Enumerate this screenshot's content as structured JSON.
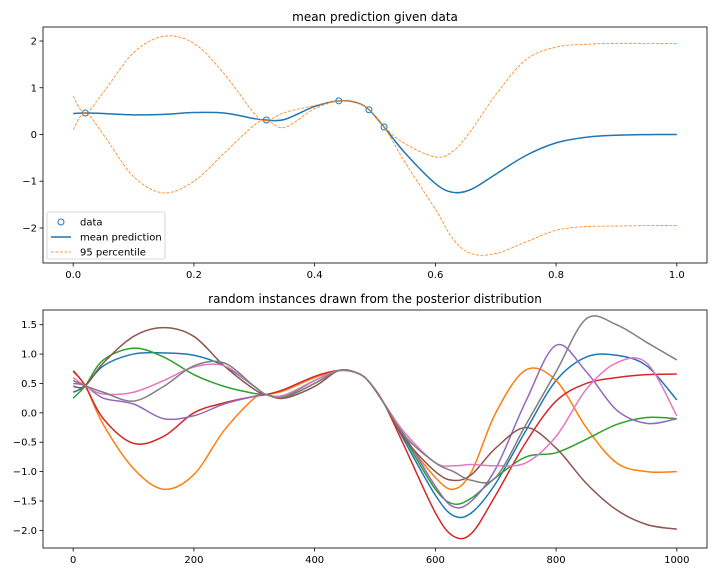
{
  "chart_data": [
    {
      "type": "line",
      "title": "mean prediction given data",
      "xlim": [
        -0.05,
        1.05
      ],
      "ylim": [
        -2.75,
        2.3
      ],
      "xticks": [
        0.0,
        0.2,
        0.4,
        0.6,
        0.8,
        1.0
      ],
      "xtick_labels": [
        "0.0",
        "0.2",
        "0.4",
        "0.6",
        "0.8",
        "1.0"
      ],
      "yticks": [
        -2,
        -1,
        0,
        1,
        2
      ],
      "ytick_labels": [
        "−2",
        "−1",
        "0",
        "1",
        "2"
      ],
      "legend_position": "lower-left",
      "series": [
        {
          "name": "data",
          "kind": "scatter",
          "color": "#1f77b4",
          "x": [
            0.02,
            0.32,
            0.44,
            0.49,
            0.515
          ],
          "y": [
            0.46,
            0.31,
            0.72,
            0.53,
            0.16
          ]
        },
        {
          "name": "mean prediction",
          "kind": "line",
          "color": "#1f77b4",
          "x": [
            0.0,
            0.02,
            0.05,
            0.1,
            0.15,
            0.2,
            0.25,
            0.3,
            0.32,
            0.35,
            0.4,
            0.44,
            0.47,
            0.49,
            0.515,
            0.55,
            0.6,
            0.63,
            0.66,
            0.7,
            0.75,
            0.8,
            0.85,
            0.9,
            0.95,
            1.0
          ],
          "y": [
            0.45,
            0.46,
            0.45,
            0.42,
            0.43,
            0.47,
            0.46,
            0.34,
            0.31,
            0.32,
            0.6,
            0.72,
            0.68,
            0.53,
            0.16,
            -0.4,
            -1.05,
            -1.24,
            -1.17,
            -0.85,
            -0.45,
            -0.18,
            -0.06,
            -0.015,
            -0.003,
            0.0
          ]
        },
        {
          "name": "95 percentile",
          "kind": "dashed",
          "color": "#ff7f0e",
          "x": [
            0.0,
            0.02,
            0.05,
            0.1,
            0.15,
            0.2,
            0.25,
            0.3,
            0.32,
            0.35,
            0.4,
            0.44,
            0.47,
            0.49,
            0.515,
            0.55,
            0.6,
            0.63,
            0.66,
            0.7,
            0.75,
            0.8,
            0.85,
            0.9,
            0.95,
            1.0
          ],
          "y": [
            0.82,
            0.46,
            0.9,
            1.75,
            2.1,
            1.95,
            1.3,
            0.45,
            0.3,
            0.47,
            0.62,
            0.72,
            0.67,
            0.53,
            0.16,
            -0.2,
            -0.48,
            -0.35,
            0.1,
            0.85,
            1.6,
            1.87,
            1.93,
            1.95,
            1.95,
            1.95
          ]
        },
        {
          "name": "",
          "kind": "dashed",
          "color": "#ff7f0e",
          "x": [
            0.0,
            0.02,
            0.05,
            0.1,
            0.15,
            0.2,
            0.25,
            0.3,
            0.32,
            0.35,
            0.4,
            0.44,
            0.47,
            0.49,
            0.515,
            0.55,
            0.6,
            0.63,
            0.66,
            0.7,
            0.75,
            0.8,
            0.85,
            0.9,
            0.95,
            1.0
          ],
          "y": [
            0.1,
            0.46,
            0.0,
            -0.9,
            -1.25,
            -1.0,
            -0.4,
            0.2,
            0.3,
            0.15,
            0.55,
            0.72,
            0.68,
            0.53,
            0.16,
            -0.6,
            -1.6,
            -2.25,
            -2.55,
            -2.55,
            -2.3,
            -2.05,
            -1.97,
            -1.96,
            -1.95,
            -1.95
          ]
        }
      ]
    },
    {
      "type": "line",
      "title": "random instances drawn from the posterior distribution",
      "xlim": [
        -50,
        1050
      ],
      "ylim": [
        -2.3,
        1.75
      ],
      "xticks": [
        0,
        200,
        400,
        600,
        800,
        1000
      ],
      "xtick_labels": [
        "0",
        "200",
        "400",
        "600",
        "800",
        "1000"
      ],
      "yticks": [
        -2.0,
        -1.5,
        -1.0,
        -0.5,
        0.0,
        0.5,
        1.0,
        1.5
      ],
      "ytick_labels": [
        "−2.0",
        "−1.5",
        "−1.0",
        "−0.5",
        "0.0",
        "0.5",
        "1.0",
        "1.5"
      ],
      "x": [
        0,
        20,
        50,
        100,
        150,
        200,
        250,
        300,
        320,
        350,
        400,
        440,
        470,
        490,
        515,
        550,
        600,
        630,
        660,
        700,
        750,
        800,
        850,
        900,
        950,
        1000
      ],
      "series": [
        {
          "color": "#1f77b4",
          "values": [
            0.35,
            0.46,
            0.8,
            1.0,
            1.02,
            0.98,
            0.8,
            0.45,
            0.31,
            0.3,
            0.55,
            0.72,
            0.68,
            0.53,
            0.16,
            -0.5,
            -1.4,
            -1.75,
            -1.7,
            -1.2,
            -0.3,
            0.55,
            0.95,
            0.98,
            0.8,
            0.22
          ]
        },
        {
          "color": "#ff7f0e",
          "values": [
            0.7,
            0.46,
            -0.2,
            -0.95,
            -1.3,
            -1.05,
            -0.3,
            0.25,
            0.31,
            0.38,
            0.6,
            0.72,
            0.68,
            0.53,
            0.16,
            -0.45,
            -1.1,
            -1.3,
            -1.0,
            0.0,
            0.73,
            0.55,
            -0.25,
            -0.85,
            -1.0,
            -1.0
          ]
        },
        {
          "color": "#2ca02c",
          "values": [
            0.25,
            0.46,
            0.9,
            1.1,
            0.95,
            0.65,
            0.45,
            0.33,
            0.31,
            0.28,
            0.55,
            0.72,
            0.68,
            0.53,
            0.16,
            -0.45,
            -1.3,
            -1.55,
            -1.45,
            -1.1,
            -0.75,
            -0.68,
            -0.45,
            -0.2,
            -0.08,
            -0.1
          ]
        },
        {
          "color": "#d62728",
          "values": [
            0.72,
            0.46,
            -0.1,
            -0.52,
            -0.4,
            0.0,
            0.17,
            0.28,
            0.31,
            0.4,
            0.62,
            0.72,
            0.68,
            0.53,
            0.16,
            -0.6,
            -1.7,
            -2.1,
            -2.05,
            -1.4,
            -0.5,
            0.2,
            0.5,
            0.6,
            0.65,
            0.66
          ]
        },
        {
          "color": "#9467bd",
          "values": [
            0.5,
            0.46,
            0.25,
            0.15,
            -0.1,
            -0.05,
            0.15,
            0.28,
            0.31,
            0.26,
            0.5,
            0.72,
            0.68,
            0.53,
            0.16,
            -0.4,
            -1.25,
            -1.6,
            -1.5,
            -0.95,
            0.2,
            1.15,
            0.7,
            0.05,
            -0.18,
            -0.1
          ]
        },
        {
          "color": "#8c564b",
          "values": [
            0.45,
            0.46,
            0.85,
            1.3,
            1.45,
            1.3,
            0.8,
            0.4,
            0.31,
            0.25,
            0.45,
            0.72,
            0.68,
            0.53,
            0.16,
            -0.45,
            -1.0,
            -1.15,
            -1.05,
            -0.6,
            -0.25,
            -0.6,
            -1.2,
            -1.65,
            -1.9,
            -1.98
          ]
        },
        {
          "color": "#e377c2",
          "values": [
            0.6,
            0.46,
            0.32,
            0.35,
            0.55,
            0.78,
            0.8,
            0.45,
            0.31,
            0.3,
            0.55,
            0.72,
            0.68,
            0.53,
            0.16,
            -0.35,
            -0.85,
            -0.9,
            -0.88,
            -0.9,
            -0.85,
            -0.4,
            0.4,
            0.85,
            0.85,
            -0.05
          ]
        },
        {
          "color": "#7f7f7f",
          "values": [
            0.55,
            0.46,
            0.35,
            0.2,
            0.45,
            0.8,
            0.85,
            0.45,
            0.31,
            0.27,
            0.5,
            0.72,
            0.68,
            0.53,
            0.16,
            -0.4,
            -0.85,
            -1.0,
            -1.15,
            -1.1,
            -0.2,
            0.7,
            1.6,
            1.5,
            1.2,
            0.9
          ]
        }
      ]
    }
  ]
}
